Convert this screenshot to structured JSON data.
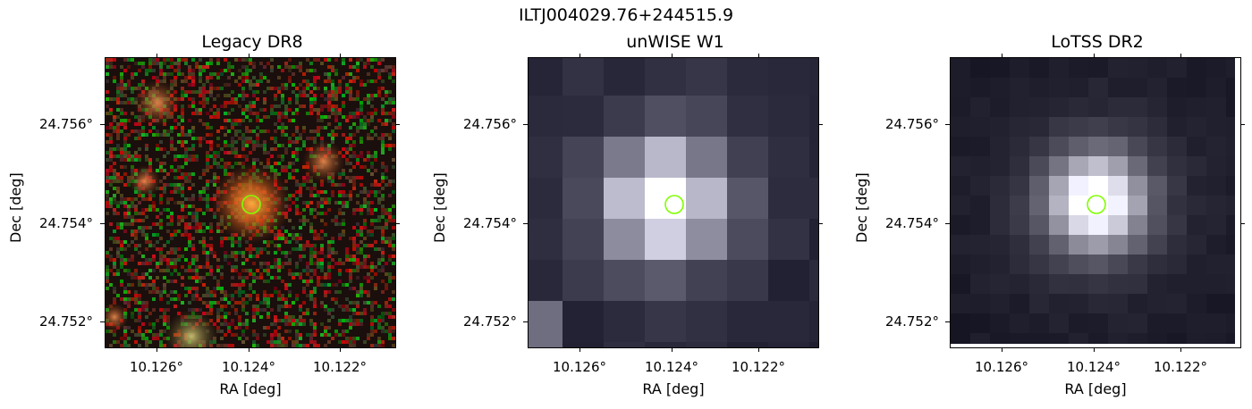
{
  "figure": {
    "title": "ILTJ004029.76+244515.9"
  },
  "panels": [
    {
      "title": "Legacy DR8",
      "xlabel": "RA [deg]",
      "ylabel": "Dec [deg]",
      "xticks": [
        "10.126°",
        "10.124°",
        "10.122°"
      ],
      "yticks": [
        "24.756°",
        "24.754°",
        "24.752°"
      ]
    },
    {
      "title": "unWISE W1",
      "xlabel": "RA [deg]",
      "ylabel": "Dec [deg]",
      "xticks": [
        "10.126°",
        "10.124°",
        "10.122°"
      ],
      "yticks": [
        "24.756°",
        "24.754°",
        "24.752°"
      ]
    },
    {
      "title": "LoTSS DR2",
      "xlabel": "RA [deg]",
      "ylabel": "Dec [deg]",
      "xticks": [
        "10.126°",
        "10.124°",
        "10.122°"
      ],
      "yticks": [
        "24.756°",
        "24.754°",
        "24.752°"
      ]
    }
  ],
  "colors": {
    "marker_circle": "#7fff00"
  }
}
